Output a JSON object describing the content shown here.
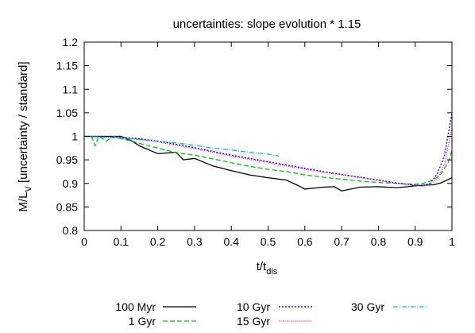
{
  "chart_data": {
    "type": "line",
    "title": "uncertainties: slope evolution * 1.15",
    "xlabel_main": "t/t",
    "xlabel_sub": "dis",
    "ylabel_main": "M/L",
    "ylabel_sub": "V",
    "ylabel_rest": " [uncertainty / standard]",
    "xlim": [
      0,
      1
    ],
    "ylim": [
      0.8,
      1.2
    ],
    "x_ticks": [
      "0",
      "0.1",
      "0.2",
      "0.3",
      "0.4",
      "0.5",
      "0.6",
      "0.7",
      "0.8",
      "0.9",
      "1"
    ],
    "y_ticks": [
      "0.8",
      "0.85",
      "0.9",
      "0.95",
      "1",
      "1.05",
      "1.1",
      "1.15",
      "1.2"
    ],
    "grid": false,
    "legend_position": "bottom",
    "series": [
      {
        "name": "100 Myr",
        "color": "#000000",
        "dash": "solid",
        "x": [
          0.0,
          0.05,
          0.1,
          0.13,
          0.15,
          0.2,
          0.25,
          0.27,
          0.3,
          0.35,
          0.4,
          0.45,
          0.5,
          0.55,
          0.58,
          0.6,
          0.65,
          0.68,
          0.7,
          0.75,
          0.8,
          0.85,
          0.88,
          0.9,
          0.92,
          0.95,
          0.97,
          1.0
        ],
        "y": [
          1.0,
          1.0,
          1.0,
          0.99,
          0.98,
          0.963,
          0.966,
          0.95,
          0.953,
          0.937,
          0.927,
          0.918,
          0.912,
          0.907,
          0.896,
          0.888,
          0.892,
          0.893,
          0.884,
          0.892,
          0.893,
          0.891,
          0.893,
          0.895,
          0.896,
          0.897,
          0.901,
          0.912
        ]
      },
      {
        "name": "1 Gyr",
        "color": "#00c800",
        "dash": "6,3",
        "x": [
          0.0,
          0.02,
          0.03,
          0.04,
          0.06,
          0.08,
          0.1,
          0.13,
          0.15,
          0.2,
          0.25,
          0.3,
          0.35,
          0.4,
          0.45,
          0.5,
          0.55,
          0.6,
          0.65,
          0.7,
          0.75,
          0.8,
          0.85,
          0.9,
          0.92,
          0.95,
          0.97,
          0.99,
          1.0
        ],
        "y": [
          1.0,
          1.0,
          0.98,
          1.0,
          0.99,
          1.0,
          0.995,
          0.99,
          0.985,
          0.975,
          0.965,
          0.96,
          0.952,
          0.944,
          0.936,
          0.93,
          0.925,
          0.918,
          0.913,
          0.909,
          0.905,
          0.902,
          0.9,
          0.898,
          0.9,
          0.907,
          0.92,
          0.945,
          0.97
        ]
      },
      {
        "name": "10 Gyr",
        "color": "#0000b4",
        "dash": "2,2",
        "x": [
          0.0,
          0.05,
          0.1,
          0.15,
          0.2,
          0.25,
          0.3,
          0.35,
          0.4,
          0.45,
          0.5,
          0.55,
          0.6,
          0.65,
          0.7,
          0.75,
          0.8,
          0.85,
          0.9,
          0.92,
          0.94,
          0.96,
          0.98,
          1.0
        ],
        "y": [
          1.0,
          1.0,
          0.998,
          0.995,
          0.99,
          0.983,
          0.976,
          0.968,
          0.96,
          0.953,
          0.946,
          0.939,
          0.932,
          0.925,
          0.919,
          0.913,
          0.907,
          0.901,
          0.896,
          0.895,
          0.9,
          0.92,
          0.96,
          1.05
        ]
      },
      {
        "name": "15 Gyr",
        "color": "#ff00ff",
        "dash": "1,1.5",
        "x": [
          0.0,
          0.05,
          0.1,
          0.15,
          0.2,
          0.25,
          0.3,
          0.35,
          0.4,
          0.45,
          0.5,
          0.55,
          0.6,
          0.65,
          0.7,
          0.75,
          0.8,
          0.85,
          0.9,
          0.92,
          0.94,
          0.96,
          0.98,
          1.0
        ],
        "y": [
          1.0,
          0.999,
          0.997,
          0.993,
          0.988,
          0.981,
          0.974,
          0.966,
          0.958,
          0.951,
          0.944,
          0.937,
          0.93,
          0.924,
          0.918,
          0.912,
          0.906,
          0.9,
          0.896,
          0.894,
          0.898,
          0.91,
          0.94,
          1.02
        ]
      },
      {
        "name": "30 Gyr",
        "color": "#00c8c8",
        "dash": "6,2,1,2",
        "x": [
          0.0,
          0.05,
          0.1,
          0.15,
          0.2,
          0.25,
          0.3,
          0.35,
          0.4,
          0.45,
          0.5,
          0.53
        ],
        "y": [
          1.0,
          0.998,
          0.996,
          0.993,
          0.99,
          0.986,
          0.981,
          0.975,
          0.971,
          0.966,
          0.962,
          0.958
        ]
      }
    ]
  }
}
